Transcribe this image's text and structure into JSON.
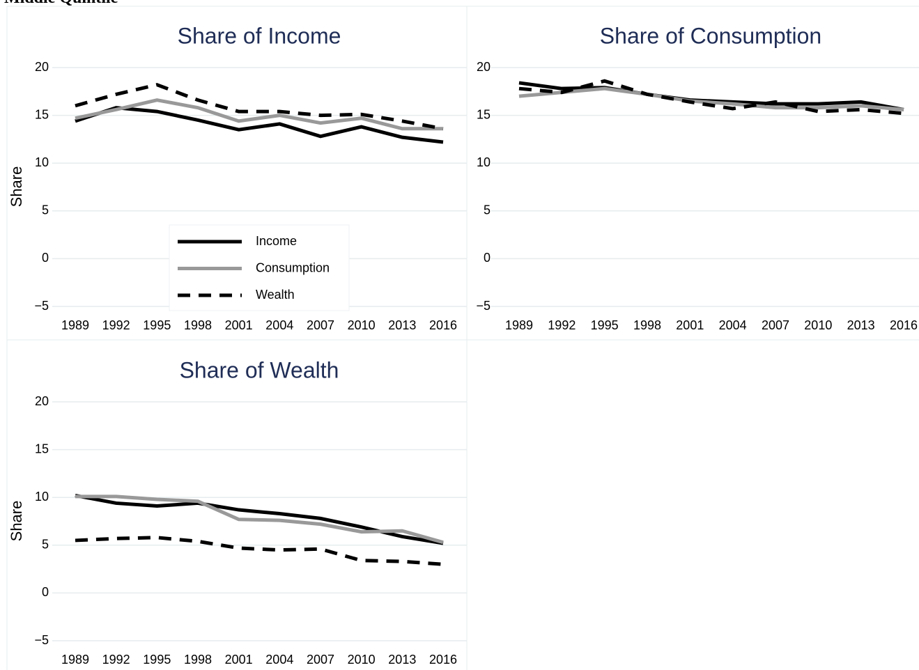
{
  "title": "Middle Quintile",
  "chart_data": [
    {
      "type": "line",
      "title": "Share of Income",
      "ylabel": "Share",
      "x": [
        1989,
        1992,
        1995,
        1998,
        2001,
        2004,
        2007,
        2010,
        2013,
        2016
      ],
      "xlim": [
        1989,
        2016
      ],
      "xticks": [
        1989,
        1992,
        1995,
        1998,
        2001,
        2004,
        2007,
        2010,
        2013,
        2016
      ],
      "ylim": [
        -5,
        20
      ],
      "yticks": [
        {
          "value": -5,
          "label": "−5"
        },
        0,
        5,
        10,
        15,
        20
      ],
      "grid": true,
      "legend": "lower center",
      "series": [
        {
          "name": "Income",
          "color": "#000000",
          "dash": "solid",
          "values": [
            14.4,
            15.8,
            15.4,
            14.5,
            13.5,
            14.1,
            12.8,
            13.8,
            12.7,
            12.2
          ]
        },
        {
          "name": "Consumption",
          "color": "#999999",
          "dash": "solid",
          "values": [
            14.7,
            15.6,
            16.6,
            15.8,
            14.4,
            15.0,
            14.2,
            14.7,
            13.6,
            13.6
          ]
        },
        {
          "name": "Wealth",
          "color": "#000000",
          "dash": "dashed",
          "values": [
            16.0,
            17.2,
            18.2,
            16.6,
            15.4,
            15.4,
            15.0,
            15.1,
            14.4,
            13.6
          ]
        }
      ]
    },
    {
      "type": "line",
      "title": "Share of Consumption",
      "x": [
        1989,
        1992,
        1995,
        1998,
        2001,
        2004,
        2007,
        2010,
        2013,
        2016
      ],
      "xlim": [
        1989,
        2016
      ],
      "xticks": [
        1989,
        1992,
        1995,
        1998,
        2001,
        2004,
        2007,
        2010,
        2013,
        2016
      ],
      "ylim": [
        -5,
        20
      ],
      "yticks": [
        {
          "value": -5,
          "label": "−5"
        },
        0,
        5,
        10,
        15,
        20
      ],
      "grid": true,
      "series": [
        {
          "name": "Income",
          "color": "#000000",
          "dash": "solid",
          "values": [
            18.4,
            17.8,
            17.9,
            17.2,
            16.6,
            16.4,
            16.2,
            16.2,
            16.4,
            15.6
          ]
        },
        {
          "name": "Consumption",
          "color": "#999999",
          "dash": "solid",
          "values": [
            17.0,
            17.4,
            17.8,
            17.2,
            16.5,
            16.2,
            15.8,
            15.8,
            16.0,
            15.6
          ]
        },
        {
          "name": "Wealth",
          "color": "#000000",
          "dash": "dashed",
          "values": [
            17.8,
            17.4,
            18.6,
            17.2,
            16.4,
            15.7,
            16.4,
            15.4,
            15.6,
            15.2
          ]
        }
      ]
    },
    {
      "type": "line",
      "title": "Share of Wealth",
      "ylabel": "Share",
      "x": [
        1989,
        1992,
        1995,
        1998,
        2001,
        2004,
        2007,
        2010,
        2013,
        2016
      ],
      "xlim": [
        1989,
        2016
      ],
      "xticks": [
        1989,
        1992,
        1995,
        1998,
        2001,
        2004,
        2007,
        2010,
        2013,
        2016
      ],
      "ylim": [
        -5,
        20
      ],
      "yticks": [
        {
          "value": -5,
          "label": "−5"
        },
        0,
        5,
        10,
        15,
        20
      ],
      "grid": true,
      "series": [
        {
          "name": "Income",
          "color": "#000000",
          "dash": "solid",
          "values": [
            10.2,
            9.4,
            9.1,
            9.4,
            8.7,
            8.3,
            7.8,
            6.9,
            5.9,
            5.2
          ]
        },
        {
          "name": "Consumption",
          "color": "#999999",
          "dash": "solid",
          "values": [
            10.1,
            10.1,
            9.8,
            9.6,
            7.7,
            7.6,
            7.2,
            6.4,
            6.5,
            5.3
          ]
        },
        {
          "name": "Wealth",
          "color": "#000000",
          "dash": "dashed",
          "values": [
            5.5,
            5.7,
            5.8,
            5.4,
            4.7,
            4.5,
            4.6,
            3.4,
            3.3,
            3.0
          ]
        }
      ]
    }
  ]
}
